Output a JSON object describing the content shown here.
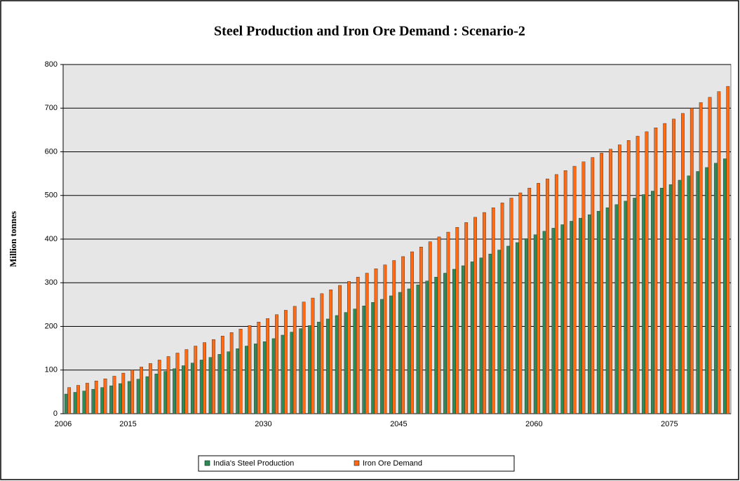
{
  "chart_data": {
    "type": "bar",
    "title": "Steel Production and Iron Ore Demand : Scenario-2",
    "y_label": "Million tonnes",
    "categories": [
      "2006",
      null,
      null,
      null,
      null,
      null,
      null,
      "2015",
      null,
      null,
      null,
      null,
      null,
      null,
      null,
      null,
      null,
      null,
      null,
      null,
      null,
      null,
      "2030",
      null,
      null,
      null,
      null,
      null,
      null,
      null,
      null,
      null,
      null,
      null,
      null,
      null,
      null,
      "2045",
      null,
      null,
      null,
      null,
      null,
      null,
      null,
      null,
      null,
      null,
      null,
      null,
      null,
      null,
      "2060",
      null,
      null,
      null,
      null,
      null,
      null,
      null,
      null,
      null,
      null,
      null,
      null,
      null,
      null,
      "2075",
      null,
      null,
      null,
      null,
      null,
      null
    ],
    "series": [
      {
        "name": "India's Steel Production",
        "color": "#2e8b57",
        "values": [
          45,
          49,
          52,
          56,
          60,
          64,
          69,
          74,
          79,
          85,
          91,
          97,
          103,
          110,
          116,
          123,
          129,
          136,
          142,
          149,
          155,
          160,
          165,
          172,
          180,
          187,
          195,
          202,
          210,
          217,
          225,
          232,
          240,
          247,
          255,
          262,
          270,
          278,
          286,
          295,
          304,
          313,
          322,
          331,
          339,
          348,
          357,
          366,
          375,
          384,
          392,
          401,
          410,
          418,
          425,
          433,
          441,
          448,
          456,
          464,
          472,
          479,
          487,
          494,
          502,
          510,
          517,
          525,
          535,
          545,
          555,
          564,
          574,
          584
        ]
      },
      {
        "name": "Iron Ore Demand",
        "color": "#ff6a13",
        "values": [
          60,
          65,
          70,
          75,
          80,
          86,
          93,
          100,
          107,
          115,
          123,
          131,
          139,
          147,
          155,
          163,
          170,
          178,
          186,
          194,
          202,
          210,
          218,
          227,
          237,
          246,
          256,
          265,
          275,
          284,
          294,
          303,
          313,
          322,
          332,
          341,
          351,
          360,
          371,
          382,
          394,
          405,
          416,
          427,
          438,
          450,
          461,
          472,
          483,
          494,
          506,
          517,
          528,
          538,
          548,
          557,
          567,
          577,
          587,
          597,
          606,
          616,
          626,
          636,
          646,
          655,
          665,
          675,
          688,
          700,
          713,
          725,
          738,
          750
        ]
      }
    ],
    "ylim": [
      0,
      800
    ],
    "yticks": [
      0,
      100,
      200,
      300,
      400,
      500,
      600,
      700,
      800
    ],
    "grid": true,
    "legend": "bottom"
  }
}
